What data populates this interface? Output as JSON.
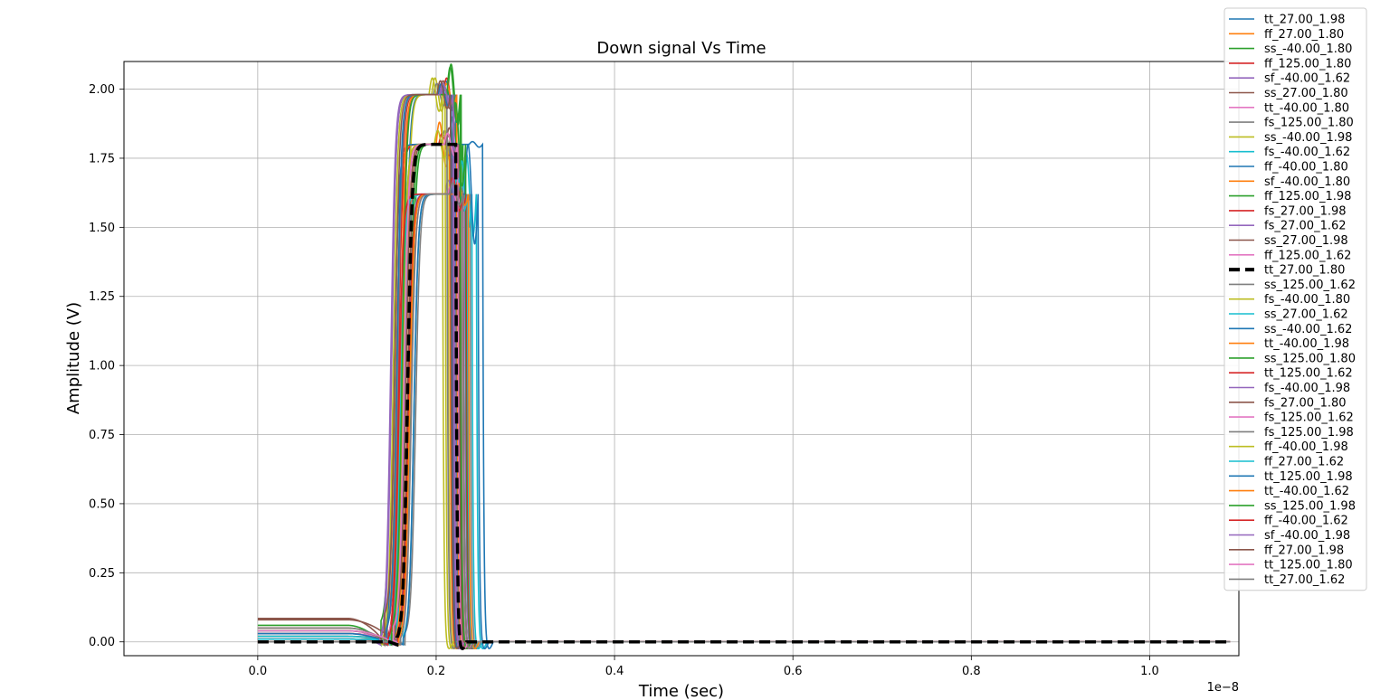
{
  "chart_data": {
    "type": "line",
    "title": "Down signal Vs Time",
    "xlabel": "Time (sec)",
    "ylabel": "Amplitude (V)",
    "x_offset_label": "1e−8",
    "xlim": [
      -1.5e-09,
      1.1e-08
    ],
    "ylim": [
      -0.05,
      2.1
    ],
    "grid": true,
    "legend_position": "outside-right",
    "x_ticks": [
      {
        "value": 0,
        "label": "0.0"
      },
      {
        "value": 2e-09,
        "label": "0.2"
      },
      {
        "value": 4e-09,
        "label": "0.4"
      },
      {
        "value": 6e-09,
        "label": "0.6"
      },
      {
        "value": 8e-09,
        "label": "0.8"
      },
      {
        "value": 1e-08,
        "label": "1.0"
      }
    ],
    "y_ticks": [
      {
        "value": 0,
        "label": "0.00"
      },
      {
        "value": 0.25,
        "label": "0.25"
      },
      {
        "value": 0.5,
        "label": "0.50"
      },
      {
        "value": 0.75,
        "label": "0.75"
      },
      {
        "value": 1.0,
        "label": "1.00"
      },
      {
        "value": 1.25,
        "label": "1.25"
      },
      {
        "value": 1.5,
        "label": "1.50"
      },
      {
        "value": 1.75,
        "label": "1.75"
      },
      {
        "value": 2.0,
        "label": "2.00"
      }
    ],
    "series": [
      {
        "name": "tt_27.00_1.98",
        "color": "#1f77b4",
        "offset": 0.0,
        "vdd": 1.98,
        "rise": 1.65e-09,
        "fall": 2.22e-09,
        "overshoot": 0.05
      },
      {
        "name": "ff_27.00_1.80",
        "color": "#ff7f0e",
        "offset": 0.02,
        "vdd": 1.8,
        "rise": 1.55e-09,
        "fall": 2.15e-09,
        "overshoot": 0.08
      },
      {
        "name": "ss_-40.00_1.80",
        "color": "#2ca02c",
        "offset": 0.0,
        "vdd": 1.8,
        "rise": 1.72e-09,
        "fall": 2.3e-09,
        "overshoot": 0.1
      },
      {
        "name": "ff_125.00_1.80",
        "color": "#d62728",
        "offset": 0.05,
        "vdd": 1.8,
        "rise": 1.57e-09,
        "fall": 2.18e-09,
        "overshoot": 0.04
      },
      {
        "name": "sf_-40.00_1.62",
        "color": "#9467bd",
        "offset": 0.0,
        "vdd": 1.62,
        "rise": 1.68e-09,
        "fall": 2.25e-09,
        "overshoot": 0.05
      },
      {
        "name": "ss_27.00_1.80",
        "color": "#8c564b",
        "offset": 0.01,
        "vdd": 1.8,
        "rise": 1.68e-09,
        "fall": 2.26e-09,
        "overshoot": 0.06
      },
      {
        "name": "tt_-40.00_1.80",
        "color": "#e377c2",
        "offset": 0.0,
        "vdd": 1.8,
        "rise": 1.63e-09,
        "fall": 2.2e-09,
        "overshoot": 0.03
      },
      {
        "name": "fs_125.00_1.80",
        "color": "#7f7f7f",
        "offset": 0.03,
        "vdd": 1.8,
        "rise": 1.62e-09,
        "fall": 2.21e-09,
        "overshoot": 0.05
      },
      {
        "name": "ss_-40.00_1.98",
        "color": "#bcbd22",
        "offset": 0.0,
        "vdd": 1.98,
        "rise": 1.66e-09,
        "fall": 2.1e-09,
        "overshoot": 0.06
      },
      {
        "name": "fs_-40.00_1.62",
        "color": "#17becf",
        "offset": 0.0,
        "vdd": 1.62,
        "rise": 1.64e-09,
        "fall": 2.45e-09,
        "overshoot": 0.15
      },
      {
        "name": "ff_-40.00_1.80",
        "color": "#1f77b4",
        "offset": 0.0,
        "vdd": 1.8,
        "rise": 1.53e-09,
        "fall": 2.52e-09,
        "overshoot": 0.01
      },
      {
        "name": "sf_-40.00_1.80",
        "color": "#ff7f0e",
        "offset": 0.0,
        "vdd": 1.8,
        "rise": 1.66e-09,
        "fall": 2.24e-09,
        "overshoot": 0.04
      },
      {
        "name": "ff_125.00_1.98",
        "color": "#2ca02c",
        "offset": 0.06,
        "vdd": 1.98,
        "rise": 1.5e-09,
        "fall": 2.28e-09,
        "overshoot": 0.11
      },
      {
        "name": "fs_27.00_1.98",
        "color": "#d62728",
        "offset": 0.01,
        "vdd": 1.98,
        "rise": 1.58e-09,
        "fall": 2.23e-09,
        "overshoot": 0.06
      },
      {
        "name": "fs_27.00_1.62",
        "color": "#9467bd",
        "offset": 0.01,
        "vdd": 1.62,
        "rise": 1.7e-09,
        "fall": 2.32e-09,
        "overshoot": 0.04
      },
      {
        "name": "ss_27.00_1.98",
        "color": "#8c564b",
        "offset": 0.01,
        "vdd": 1.98,
        "rise": 1.61e-09,
        "fall": 2.19e-09,
        "overshoot": 0.05
      },
      {
        "name": "ff_125.00_1.62",
        "color": "#e377c2",
        "offset": 0.04,
        "vdd": 1.62,
        "rise": 1.6e-09,
        "fall": 2.3e-09,
        "overshoot": 0.05
      },
      {
        "name": "tt_27.00_1.80",
        "color": "#000000",
        "dashed": true,
        "offset": 0.0,
        "vdd": 1.8,
        "rise": 1.68e-09,
        "fall": 2.22e-09,
        "overshoot": 0.0
      },
      {
        "name": "ss_125.00_1.62",
        "color": "#7f7f7f",
        "offset": 0.02,
        "vdd": 1.62,
        "rise": 1.77e-09,
        "fall": 2.38e-09,
        "overshoot": 0.03
      },
      {
        "name": "fs_-40.00_1.80",
        "color": "#bcbd22",
        "offset": 0.0,
        "vdd": 1.8,
        "rise": 1.62e-09,
        "fall": 2.13e-09,
        "overshoot": 0.05
      },
      {
        "name": "ss_27.00_1.62",
        "color": "#17becf",
        "offset": 0.01,
        "vdd": 1.62,
        "rise": 1.75e-09,
        "fall": 2.4e-09,
        "overshoot": 0.12
      },
      {
        "name": "ss_-40.00_1.62",
        "color": "#1f77b4",
        "offset": 0.0,
        "vdd": 1.62,
        "rise": 1.75e-09,
        "fall": 2.47e-09,
        "overshoot": 0.18
      },
      {
        "name": "tt_-40.00_1.98",
        "color": "#ff7f0e",
        "offset": 0.0,
        "vdd": 1.98,
        "rise": 1.6e-09,
        "fall": 2.23e-09,
        "overshoot": 0.04
      },
      {
        "name": "ss_125.00_1.80",
        "color": "#2ca02c",
        "offset": 0.03,
        "vdd": 1.8,
        "rise": 1.7e-09,
        "fall": 2.33e-09,
        "overshoot": 0.15
      },
      {
        "name": "tt_125.00_1.62",
        "color": "#d62728",
        "offset": 0.03,
        "vdd": 1.62,
        "rise": 1.69e-09,
        "fall": 2.34e-09,
        "overshoot": 0.04
      },
      {
        "name": "fs_-40.00_1.98",
        "color": "#9467bd",
        "offset": 0.0,
        "vdd": 1.98,
        "rise": 1.5e-09,
        "fall": 2.2e-09,
        "overshoot": 0.03
      },
      {
        "name": "fs_27.00_1.80",
        "color": "#8c564b",
        "offset": 0.08,
        "vdd": 1.8,
        "rise": 1.66e-09,
        "fall": 2.25e-09,
        "overshoot": 0.03
      },
      {
        "name": "fs_125.00_1.62",
        "color": "#e377c2",
        "offset": 0.03,
        "vdd": 1.62,
        "rise": 1.72e-09,
        "fall": 2.28e-09,
        "overshoot": 0.03
      },
      {
        "name": "fs_125.00_1.98",
        "color": "#7f7f7f",
        "offset": 0.05,
        "vdd": 1.98,
        "rise": 1.57e-09,
        "fall": 2.12e-09,
        "overshoot": 0.04
      },
      {
        "name": "ff_-40.00_1.98",
        "color": "#bcbd22",
        "offset": 0.0,
        "vdd": 1.98,
        "rise": 1.52e-09,
        "fall": 2.07e-09,
        "overshoot": 0.06
      },
      {
        "name": "ff_27.00_1.62",
        "color": "#17becf",
        "offset": 0.02,
        "vdd": 1.62,
        "rise": 1.6e-09,
        "fall": 2.35e-09,
        "overshoot": 0.06
      },
      {
        "name": "tt_125.00_1.98",
        "color": "#1f77b4",
        "offset": 0.03,
        "vdd": 1.98,
        "rise": 1.56e-09,
        "fall": 2.17e-09,
        "overshoot": 0.04
      },
      {
        "name": "tt_-40.00_1.62",
        "color": "#ff7f0e",
        "offset": 0.0,
        "vdd": 1.62,
        "rise": 1.7e-09,
        "fall": 2.36e-09,
        "overshoot": 0.04
      },
      {
        "name": "ss_125.00_1.98",
        "color": "#2ca02c",
        "offset": 0.04,
        "vdd": 1.98,
        "rise": 1.62e-09,
        "fall": 2.27e-09,
        "overshoot": 0.1
      },
      {
        "name": "ff_-40.00_1.62",
        "color": "#d62728",
        "offset": 0.0,
        "vdd": 1.62,
        "rise": 1.58e-09,
        "fall": 2.3e-09,
        "overshoot": 0.06
      },
      {
        "name": "sf_-40.00_1.98",
        "color": "#9467bd",
        "offset": 0.0,
        "vdd": 1.98,
        "rise": 1.49e-09,
        "fall": 2.19e-09,
        "overshoot": 0.04
      },
      {
        "name": "ff_27.00_1.98",
        "color": "#8c564b",
        "offset": 0.085,
        "vdd": 1.98,
        "rise": 1.54e-09,
        "fall": 2.16e-09,
        "overshoot": 0.05
      },
      {
        "name": "tt_125.00_1.80",
        "color": "#e377c2",
        "offset": 0.04,
        "vdd": 1.8,
        "rise": 1.64e-09,
        "fall": 2.24e-09,
        "overshoot": 0.04
      },
      {
        "name": "tt_27.00_1.62",
        "color": "#7f7f7f",
        "offset": 0.0,
        "vdd": 1.62,
        "rise": 1.72e-09,
        "fall": 2.3e-09,
        "overshoot": 0.04
      }
    ]
  }
}
